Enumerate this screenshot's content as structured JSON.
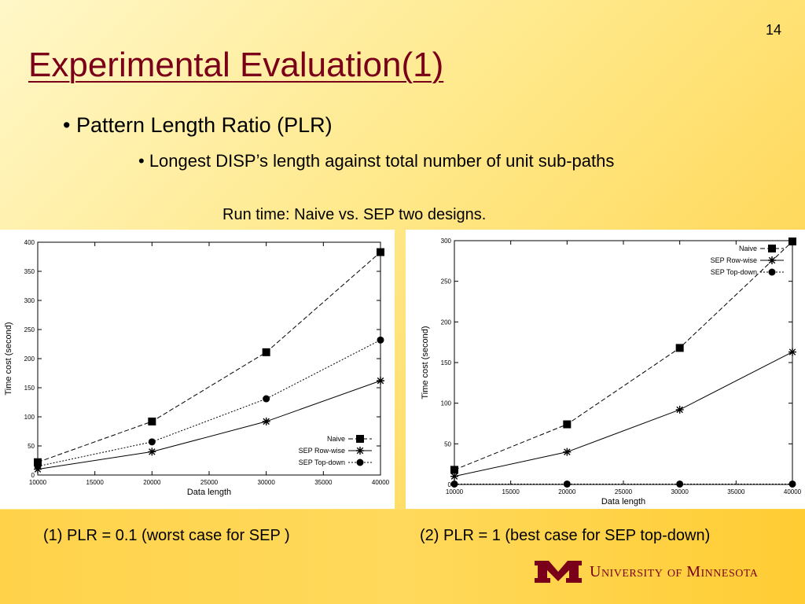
{
  "slide": {
    "page_number": "14",
    "title": "Experimental Evaluation(1)",
    "bullet1": "• Pattern Length Ratio (PLR)",
    "bullet2": "• Longest DISP’s length against total number of unit sub-paths",
    "subtitle": "Run time: Naive vs. SEP two designs.",
    "caption1": "(1) PLR = 0.1 (worst case for SEP )",
    "caption2": "(2) PLR = 1 (best case for SEP top-down)",
    "logo_text": "University of Minnesota"
  },
  "chart_data": [
    {
      "type": "line",
      "title": "",
      "xlabel": "Data length",
      "ylabel": "Time cost (second)",
      "xlim": [
        10000,
        40000
      ],
      "ylim": [
        0,
        400
      ],
      "x": [
        10000,
        20000,
        30000,
        40000
      ],
      "xticks": [
        10000,
        15000,
        20000,
        25000,
        30000,
        35000,
        40000
      ],
      "yticks": [
        0,
        50,
        100,
        150,
        200,
        250,
        300,
        350,
        400
      ],
      "legend_position": "bottom-right",
      "series": [
        {
          "name": "Naive",
          "values": [
            22,
            92,
            211,
            383
          ],
          "marker": "square",
          "dash": "dash"
        },
        {
          "name": "SEP Row-wise",
          "values": [
            10,
            40,
            92,
            162
          ],
          "marker": "star",
          "dash": "solid"
        },
        {
          "name": "SEP Top-down",
          "values": [
            15,
            57,
            131,
            232
          ],
          "marker": "circle",
          "dash": "dot"
        }
      ]
    },
    {
      "type": "line",
      "title": "",
      "xlabel": "Data length",
      "ylabel": "Time cost (second)",
      "xlim": [
        10000,
        40000
      ],
      "ylim": [
        0,
        300
      ],
      "x": [
        10000,
        20000,
        30000,
        40000
      ],
      "xticks": [
        10000,
        15000,
        20000,
        25000,
        30000,
        35000,
        40000
      ],
      "yticks": [
        0,
        50,
        100,
        150,
        200,
        250,
        300
      ],
      "legend_position": "top-right",
      "series": [
        {
          "name": "Naive",
          "values": [
            18,
            74,
            168,
            299
          ],
          "marker": "square",
          "dash": "dash"
        },
        {
          "name": "SEP Row-wise",
          "values": [
            10,
            40,
            92,
            163
          ],
          "marker": "star",
          "dash": "solid"
        },
        {
          "name": "SEP Top-down",
          "values": [
            0.5,
            0.5,
            0.5,
            0.5
          ],
          "marker": "circle",
          "dash": "dot"
        }
      ]
    }
  ]
}
